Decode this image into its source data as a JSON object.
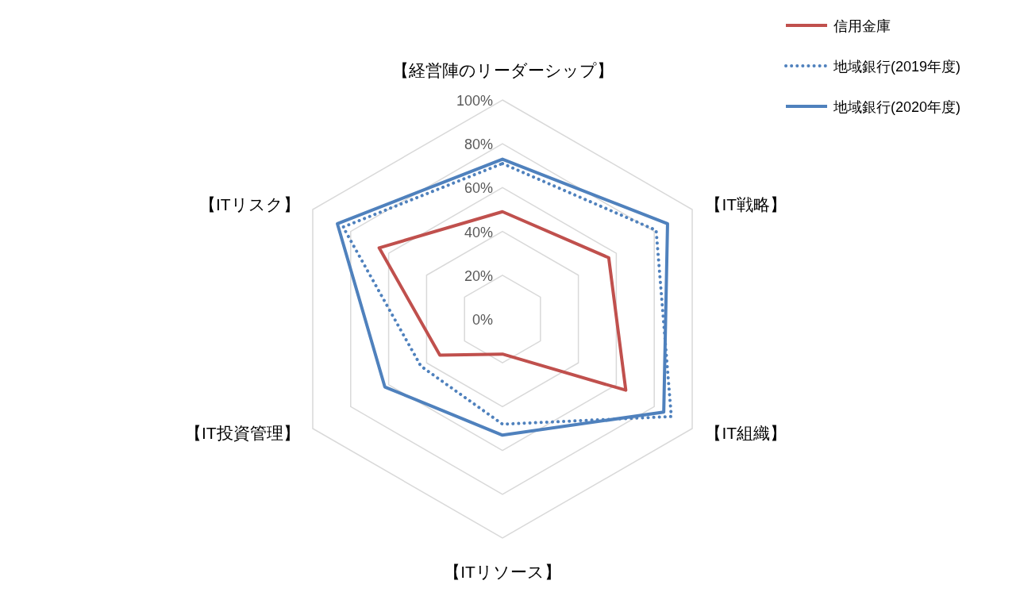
{
  "chart_data": {
    "type": "radar",
    "categories": [
      "【経営陣のリーダーシップ】",
      "【IT戦略】",
      "【IT組織】",
      "【ITリソース】",
      "【IT投資管理】",
      "【ITリスク】"
    ],
    "ylim": [
      0,
      100
    ],
    "yticks": [
      {
        "value": 0,
        "label": "0%"
      },
      {
        "value": 20,
        "label": "20%"
      },
      {
        "value": 40,
        "label": "40%"
      },
      {
        "value": 60,
        "label": "60%"
      },
      {
        "value": 80,
        "label": "80%"
      },
      {
        "value": 100,
        "label": "100%"
      }
    ],
    "grid": true,
    "legend": "top right",
    "series": [
      {
        "name": "信用金庫",
        "color": "#c0504d",
        "line_style": "solid",
        "values": [
          49,
          56,
          65,
          16,
          33,
          65
        ]
      },
      {
        "name": "地域銀行(2019年度)",
        "color": "#4f81bd",
        "line_style": "dotted",
        "values": [
          71,
          81,
          89,
          48,
          43,
          84
        ]
      },
      {
        "name": "地域銀行(2020年度)",
        "color": "#4f81bd",
        "line_style": "solid",
        "values": [
          73,
          87,
          85,
          53,
          62,
          87
        ]
      }
    ]
  }
}
